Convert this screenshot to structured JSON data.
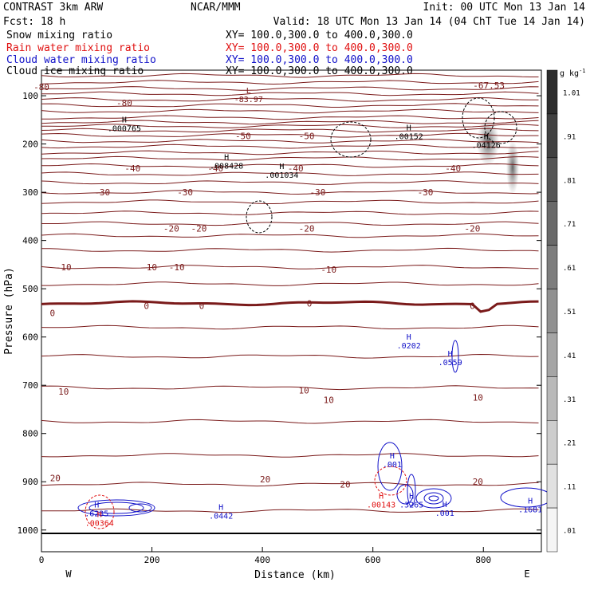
{
  "header": {
    "left": [
      "CONTRAST  3km ARW",
      "Fcst:   18 h"
    ],
    "center": "NCAR/MMM",
    "init": "Init: 00 UTC Mon 13 Jan 14",
    "valid": "Valid: 18 UTC Mon 13 Jan 14 (04 ChT Tue 14 Jan 14)"
  },
  "fields": [
    {
      "name": "Snow mixing ratio",
      "xy": "XY= 100.0,300.0 to 400.0,300.0",
      "color": "#000000"
    },
    {
      "name": "Rain water mixing ratio",
      "xy": "XY= 100.0,300.0 to 400.0,300.0",
      "color": "#e01010"
    },
    {
      "name": "Cloud water mixing ratio",
      "xy": "XY= 100.0,300.0 to 400.0,300.0",
      "color": "#1010c8"
    },
    {
      "name": "Cloud ice mixing ratio",
      "xy": "XY= 100.0,300.0 to 400.0,300.0",
      "color": "#000000"
    }
  ],
  "colors": {
    "temperature": "#7a1a1a",
    "zero_isotherm": "#7a1a1a",
    "rain": "#e01010",
    "cloud_water": "#1010c8",
    "ice": "#000000",
    "colorbar": "#000000"
  },
  "chart_data": {
    "type": "contour",
    "xlabel": "Distance (km)",
    "ylabel": "Pressure (hPa)",
    "x_range": [
      0,
      905
    ],
    "y_range": [
      47,
      1045
    ],
    "y_log": false,
    "x_ticks": [
      "0",
      "200",
      "400",
      "600",
      "800"
    ],
    "x_tick_values": [
      0,
      200,
      400,
      600,
      800
    ],
    "x_end_labels": [
      "W",
      "E"
    ],
    "y_ticks": [
      "100",
      "200",
      "300",
      "400",
      "500",
      "600",
      "700",
      "800",
      "900",
      "1000"
    ],
    "y_tick_values": [
      100,
      200,
      300,
      400,
      500,
      600,
      700,
      800,
      900,
      1000
    ],
    "colorbar": {
      "unit": "g kg",
      "unit_exponent": "-1",
      "labels": [
        "1.01",
        ".91",
        ".81",
        ".71",
        ".61",
        ".51",
        ".41",
        ".31",
        ".21",
        ".11",
        ".01"
      ],
      "levels": [
        1.01,
        0.91,
        0.81,
        0.71,
        0.61,
        0.51,
        0.41,
        0.31,
        0.21,
        0.11,
        0.01
      ]
    },
    "isotherm_labels": [
      {
        "text": "-80",
        "x": 0,
        "p": 82
      },
      {
        "text": "-80",
        "x": 150,
        "p": 115
      },
      {
        "text": "-67.53",
        "x": 810,
        "p": 78
      },
      {
        "text": "-50",
        "x": 365,
        "p": 183
      },
      {
        "text": "-50",
        "x": 480,
        "p": 183
      },
      {
        "text": "-40",
        "x": 165,
        "p": 250
      },
      {
        "text": "-40",
        "x": 315,
        "p": 250
      },
      {
        "text": "-40",
        "x": 460,
        "p": 250
      },
      {
        "text": "-40",
        "x": 745,
        "p": 250
      },
      {
        "text": "-30",
        "x": 110,
        "p": 300
      },
      {
        "text": "-30",
        "x": 260,
        "p": 300
      },
      {
        "text": "-30",
        "x": 500,
        "p": 300
      },
      {
        "text": "-30",
        "x": 695,
        "p": 300
      },
      {
        "text": "-20",
        "x": 235,
        "p": 375
      },
      {
        "text": "-20",
        "x": 285,
        "p": 375
      },
      {
        "text": "-20",
        "x": 480,
        "p": 375
      },
      {
        "text": "-20",
        "x": 780,
        "p": 375
      },
      {
        "text": "-10",
        "x": 40,
        "p": 455
      },
      {
        "text": "-10",
        "x": 195,
        "p": 455
      },
      {
        "text": "-10",
        "x": 245,
        "p": 455
      },
      {
        "text": "-10",
        "x": 520,
        "p": 460
      },
      {
        "text": "0",
        "x": 20,
        "p": 550
      },
      {
        "text": "0",
        "x": 190,
        "p": 535
      },
      {
        "text": "0",
        "x": 290,
        "p": 535
      },
      {
        "text": "0",
        "x": 485,
        "p": 530
      },
      {
        "text": "0",
        "x": 780,
        "p": 535
      },
      {
        "text": "10",
        "x": 40,
        "p": 713
      },
      {
        "text": "10",
        "x": 475,
        "p": 710
      },
      {
        "text": "10",
        "x": 520,
        "p": 730
      },
      {
        "text": "10",
        "x": 790,
        "p": 725
      },
      {
        "text": "20",
        "x": 25,
        "p": 892
      },
      {
        "text": "20",
        "x": 405,
        "p": 895
      },
      {
        "text": "20",
        "x": 550,
        "p": 905
      },
      {
        "text": "20",
        "x": 790,
        "p": 900
      }
    ],
    "extrema": [
      {
        "letter": "L",
        "value": "-83.97",
        "x": 375,
        "p": 105,
        "color": "#7a1a1a"
      },
      {
        "letter": "H",
        "value": ".000765",
        "x": 150,
        "p": 165,
        "color": "#000000"
      },
      {
        "letter": "H",
        "value": ".00152",
        "x": 665,
        "p": 182,
        "color": "#000000"
      },
      {
        "letter": "H",
        "value": ".04126",
        "x": 805,
        "p": 200,
        "color": "#000000"
      },
      {
        "letter": "H",
        "value": ".008428",
        "x": 335,
        "p": 243,
        "color": "#000000"
      },
      {
        "letter": "H",
        "value": ".001034",
        "x": 435,
        "p": 262,
        "color": "#000000"
      },
      {
        "letter": "H",
        "value": ".0202",
        "x": 665,
        "p": 615,
        "color": "#1010c8"
      },
      {
        "letter": "H",
        "value": ".0559",
        "x": 740,
        "p": 650,
        "color": "#1010c8"
      },
      {
        "letter": "H",
        "value": ".001",
        "x": 635,
        "p": 862,
        "color": "#1010c8"
      },
      {
        "letter": "H",
        "value": ".6235",
        "x": 100,
        "p": 963,
        "color": "#1010c8"
      },
      {
        "letter": "H",
        "value": ".0442",
        "x": 325,
        "p": 968,
        "color": "#1010c8"
      },
      {
        "letter": "H",
        "value": ".3265",
        "x": 670,
        "p": 945,
        "color": "#1010c8"
      },
      {
        "letter": "H",
        "value": ".001",
        "x": 730,
        "p": 962,
        "color": "#1010c8"
      },
      {
        "letter": "H",
        "value": ".1681",
        "x": 885,
        "p": 955,
        "color": "#1010c8"
      },
      {
        "letter": "H",
        "value": ".00143",
        "x": 615,
        "p": 945,
        "color": "#e01010"
      },
      {
        "letter": "H",
        "value": ".00364",
        "x": 105,
        "p": 983,
        "color": "#e01010"
      }
    ]
  }
}
